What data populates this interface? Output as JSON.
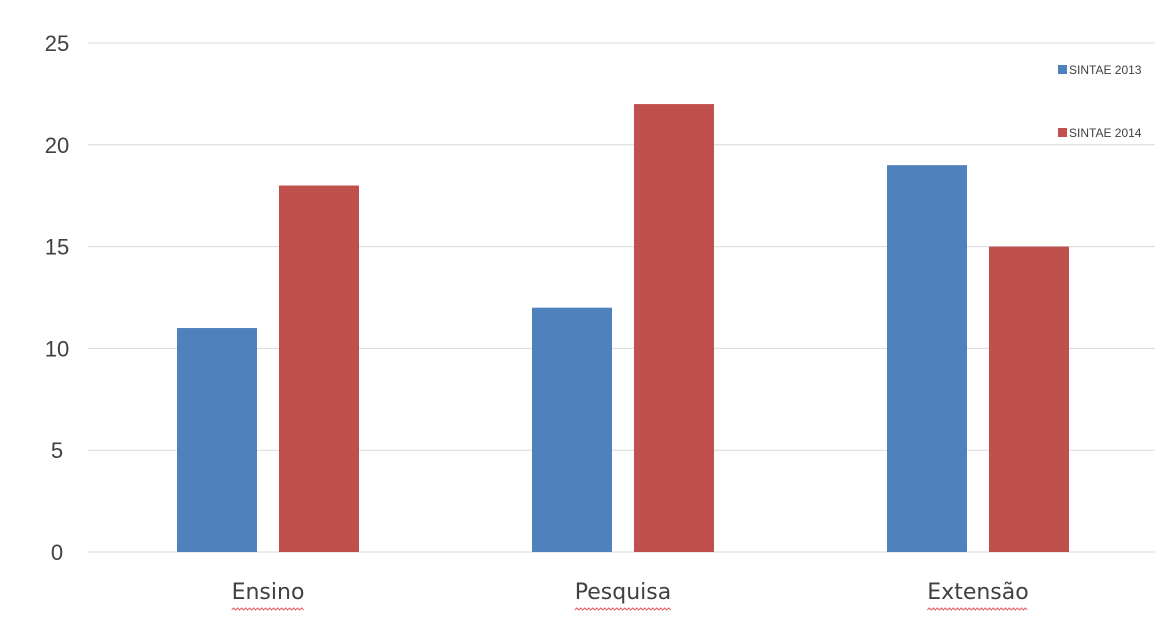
{
  "chart_data": {
    "type": "bar",
    "categories": [
      "Ensino",
      "Pesquisa",
      "Extensão"
    ],
    "series": [
      {
        "name": "SINTAE 2013",
        "color": "#4f81bd",
        "values": [
          11,
          12,
          19
        ]
      },
      {
        "name": "SINTAE 2014",
        "color": "#c0504d",
        "values": [
          18,
          22,
          15
        ]
      }
    ],
    "ylim": [
      0,
      25
    ],
    "yticks": [
      0,
      5,
      10,
      15,
      20,
      25
    ],
    "grid": true,
    "legend": "top-right"
  }
}
